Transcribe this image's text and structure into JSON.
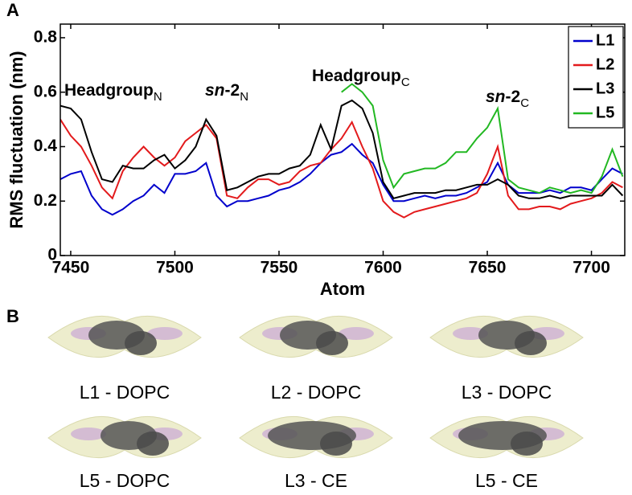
{
  "chart_data": {
    "type": "line",
    "panel_label": "A",
    "xlabel": "Atom",
    "ylabel": "RMS fluctuation (nm)",
    "xlim": [
      7445,
      7716
    ],
    "ylim": [
      0,
      0.85
    ],
    "xticks": [
      7450,
      7500,
      7550,
      7600,
      7650,
      7700
    ],
    "yticks": [
      0,
      0.2,
      0.4,
      0.6,
      0.8
    ],
    "legend": "top-right",
    "x": [
      7445,
      7450,
      7455,
      7460,
      7465,
      7470,
      7475,
      7480,
      7485,
      7490,
      7495,
      7500,
      7505,
      7510,
      7515,
      7520,
      7525,
      7530,
      7535,
      7540,
      7545,
      7550,
      7555,
      7560,
      7565,
      7570,
      7575,
      7580,
      7585,
      7590,
      7595,
      7600,
      7605,
      7610,
      7615,
      7620,
      7625,
      7630,
      7635,
      7640,
      7645,
      7650,
      7655,
      7660,
      7665,
      7670,
      7675,
      7680,
      7685,
      7690,
      7695,
      7700,
      7705,
      7710,
      7715
    ],
    "series": [
      {
        "name": "L1",
        "color": "#0000cc",
        "values": [
          0.28,
          0.3,
          0.31,
          0.22,
          0.17,
          0.15,
          0.17,
          0.2,
          0.22,
          0.26,
          0.23,
          0.3,
          0.3,
          0.31,
          0.34,
          0.22,
          0.18,
          0.2,
          0.2,
          0.21,
          0.22,
          0.24,
          0.25,
          0.27,
          0.3,
          0.34,
          0.37,
          0.38,
          0.41,
          0.37,
          0.34,
          0.26,
          0.2,
          0.2,
          0.21,
          0.22,
          0.21,
          0.22,
          0.22,
          0.23,
          0.25,
          0.27,
          0.34,
          0.26,
          0.23,
          0.23,
          0.23,
          0.24,
          0.23,
          0.25,
          0.25,
          0.24,
          0.28,
          0.32,
          0.3
        ]
      },
      {
        "name": "L2",
        "color": "#e31a1c",
        "values": [
          0.5,
          0.44,
          0.4,
          0.33,
          0.25,
          0.21,
          0.31,
          0.36,
          0.4,
          0.36,
          0.33,
          0.36,
          0.42,
          0.45,
          0.48,
          0.43,
          0.22,
          0.21,
          0.25,
          0.28,
          0.28,
          0.26,
          0.27,
          0.31,
          0.33,
          0.34,
          0.39,
          0.43,
          0.49,
          0.4,
          0.32,
          0.2,
          0.16,
          0.14,
          0.16,
          0.17,
          0.18,
          0.19,
          0.2,
          0.21,
          0.23,
          0.3,
          0.4,
          0.22,
          0.17,
          0.17,
          0.18,
          0.18,
          0.17,
          0.19,
          0.2,
          0.21,
          0.23,
          0.27,
          0.25
        ]
      },
      {
        "name": "L3",
        "color": "#000000",
        "values": [
          0.55,
          0.54,
          0.5,
          0.38,
          0.28,
          0.27,
          0.33,
          0.32,
          0.32,
          0.35,
          0.37,
          0.32,
          0.35,
          0.4,
          0.5,
          0.44,
          0.24,
          0.25,
          0.27,
          0.29,
          0.3,
          0.3,
          0.32,
          0.33,
          0.37,
          0.48,
          0.39,
          0.55,
          0.57,
          0.54,
          0.45,
          0.27,
          0.21,
          0.22,
          0.23,
          0.23,
          0.23,
          0.24,
          0.24,
          0.25,
          0.26,
          0.26,
          0.28,
          0.26,
          0.22,
          0.21,
          0.21,
          0.22,
          0.21,
          0.22,
          0.22,
          0.22,
          0.22,
          0.26,
          0.22
        ]
      },
      {
        "name": "L5",
        "color": "#22b822",
        "values": [
          null,
          null,
          null,
          null,
          null,
          null,
          null,
          null,
          null,
          null,
          null,
          null,
          null,
          null,
          null,
          null,
          null,
          null,
          null,
          null,
          null,
          null,
          null,
          null,
          null,
          null,
          null,
          0.6,
          0.63,
          0.6,
          0.55,
          0.35,
          0.25,
          0.3,
          0.31,
          0.32,
          0.32,
          0.34,
          0.38,
          0.38,
          0.43,
          0.47,
          0.54,
          0.28,
          0.25,
          0.24,
          0.23,
          0.25,
          0.24,
          0.23,
          0.24,
          0.23,
          0.29,
          0.39,
          0.29
        ]
      }
    ],
    "annotations": [
      {
        "text": "Headgroup",
        "sub": "N"
      },
      {
        "italic": "sn",
        "text": "-2",
        "sub": "N"
      },
      {
        "text": "Headgroup",
        "sub": "C"
      },
      {
        "italic": "sn",
        "text": "-2",
        "sub": "C"
      }
    ]
  },
  "panel_b": {
    "label": "B",
    "captions": [
      "L1 - DOPC",
      "L2 - DOPC",
      "L3 - DOPC",
      "L5 - DOPC",
      "L3 - CE",
      "L5 - CE"
    ]
  }
}
